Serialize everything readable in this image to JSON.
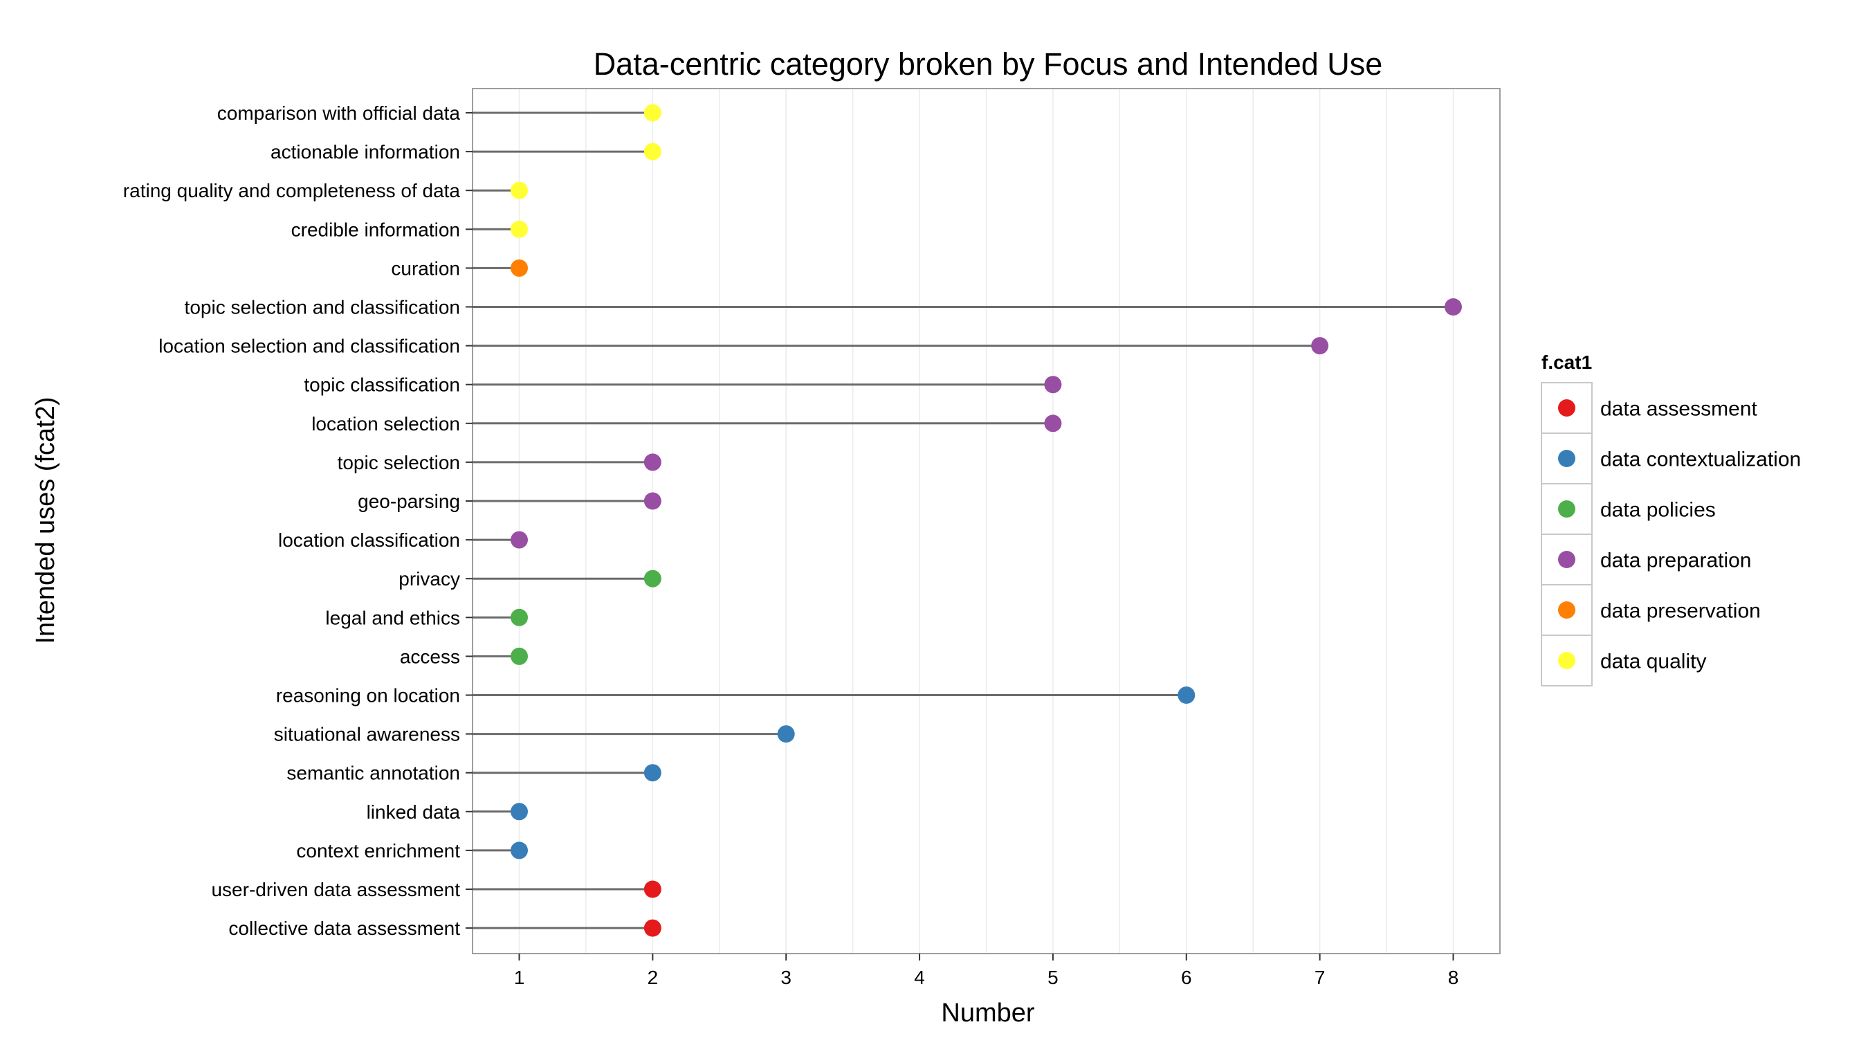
{
  "chart_data": {
    "type": "lollipop",
    "title": "Data-centric category broken by Focus and Intended Use",
    "xlabel": "Number",
    "ylabel": "Intended uses (fcat2)",
    "xlim": [
      0.65,
      8.35
    ],
    "x_ticks": [
      1,
      2,
      3,
      4,
      5,
      6,
      7,
      8
    ],
    "grid": true,
    "legend": {
      "title": "f.cat1",
      "placement": "right",
      "entries": [
        {
          "label": "data assessment",
          "color": "#E41A1C"
        },
        {
          "label": "data contextualization",
          "color": "#377EB8"
        },
        {
          "label": "data policies",
          "color": "#4DAF4A"
        },
        {
          "label": "data preparation",
          "color": "#984EA3"
        },
        {
          "label": "data preservation",
          "color": "#FF7F00"
        },
        {
          "label": "data quality",
          "color": "#FFFF33"
        }
      ]
    },
    "rows": [
      {
        "label": "comparison with official data",
        "value": 2,
        "category": "data quality"
      },
      {
        "label": "actionable information",
        "value": 2,
        "category": "data quality"
      },
      {
        "label": "rating quality and completeness of data",
        "value": 1,
        "category": "data quality"
      },
      {
        "label": "credible information",
        "value": 1,
        "category": "data quality"
      },
      {
        "label": "curation",
        "value": 1,
        "category": "data preservation"
      },
      {
        "label": "topic selection and classification",
        "value": 8,
        "category": "data preparation"
      },
      {
        "label": "location selection and classification",
        "value": 7,
        "category": "data preparation"
      },
      {
        "label": "topic classification",
        "value": 5,
        "category": "data preparation"
      },
      {
        "label": "location selection",
        "value": 5,
        "category": "data preparation"
      },
      {
        "label": "topic selection",
        "value": 2,
        "category": "data preparation"
      },
      {
        "label": "geo-parsing",
        "value": 2,
        "category": "data preparation"
      },
      {
        "label": "location classification",
        "value": 1,
        "category": "data preparation"
      },
      {
        "label": "privacy",
        "value": 2,
        "category": "data policies"
      },
      {
        "label": "legal and ethics",
        "value": 1,
        "category": "data policies"
      },
      {
        "label": "access",
        "value": 1,
        "category": "data policies"
      },
      {
        "label": "reasoning on location",
        "value": 6,
        "category": "data contextualization"
      },
      {
        "label": "situational awareness",
        "value": 3,
        "category": "data contextualization"
      },
      {
        "label": "semantic annotation",
        "value": 2,
        "category": "data contextualization"
      },
      {
        "label": "linked data",
        "value": 1,
        "category": "data contextualization"
      },
      {
        "label": "context enrichment",
        "value": 1,
        "category": "data contextualization"
      },
      {
        "label": "user-driven data assessment",
        "value": 2,
        "category": "data assessment"
      },
      {
        "label": "collective data assessment",
        "value": 2,
        "category": "data assessment"
      }
    ]
  },
  "colors": {
    "stem": "#6b6b6b",
    "panel_border": "#9e9e9e",
    "grid": "#ebebeb",
    "legend_border": "#c8c8c8"
  }
}
